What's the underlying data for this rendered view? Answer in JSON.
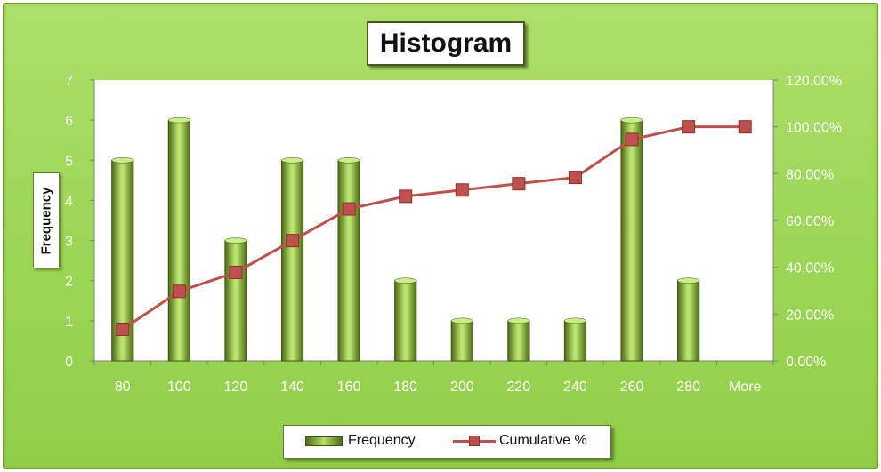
{
  "chart_data": {
    "type": "bar",
    "title": "Histogram",
    "ylabel": "Frequency",
    "y2label": "",
    "categories": [
      "80",
      "100",
      "120",
      "140",
      "160",
      "180",
      "200",
      "220",
      "240",
      "260",
      "280",
      "More"
    ],
    "series": [
      {
        "name": "Frequency",
        "type": "bar",
        "axis": "left",
        "values": [
          5,
          6,
          3,
          5,
          5,
          2,
          1,
          1,
          1,
          6,
          2,
          0
        ]
      },
      {
        "name": "Cumulative %",
        "type": "line",
        "axis": "right",
        "values": [
          13.5,
          29.7,
          37.8,
          51.4,
          64.9,
          70.3,
          73.0,
          75.7,
          78.4,
          94.6,
          100.0,
          100.0
        ]
      }
    ],
    "ylim": [
      0,
      7
    ],
    "y2lim": [
      0,
      120
    ],
    "yticks": [
      "0",
      "1",
      "2",
      "3",
      "4",
      "5",
      "6",
      "7"
    ],
    "y2ticks": [
      "0.00%",
      "20.00%",
      "40.00%",
      "60.00%",
      "80.00%",
      "100.00%",
      "120.00%"
    ],
    "grid": false,
    "legend": "bottom",
    "colors": {
      "bar": "#9bcf4a",
      "line": "#c0504d",
      "plot_bg": "#ffffff",
      "frame": "#9fd85a"
    }
  }
}
